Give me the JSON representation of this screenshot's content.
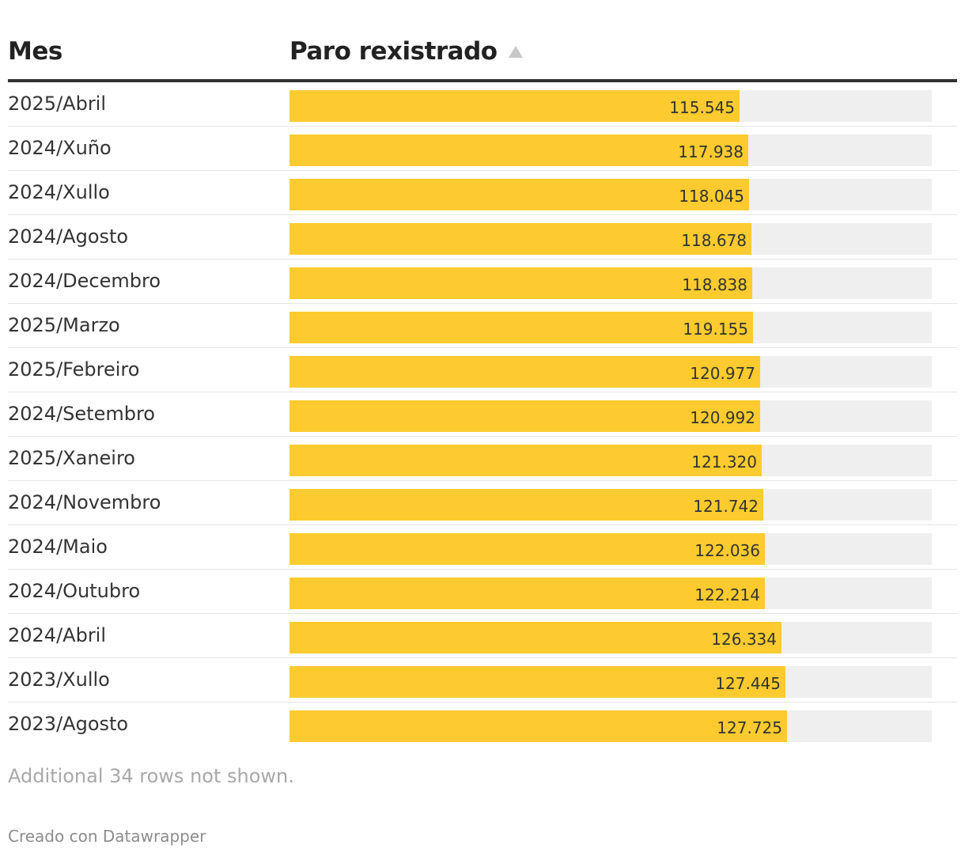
{
  "chart_data": {
    "type": "table",
    "columns": [
      "Mes",
      "Paro rexistrado"
    ],
    "sort_indicator": "▲",
    "categories": [
      "2025/Abril",
      "2024/Xuño",
      "2024/Xullo",
      "2024/Agosto",
      "2024/Decembro",
      "2025/Marzo",
      "2025/Febreiro",
      "2024/Setembro",
      "2025/Xaneiro",
      "2024/Novembro",
      "2024/Maio",
      "2024/Outubro",
      "2024/Abril",
      "2023/Xullo",
      "2023/Agosto"
    ],
    "values": [
      115545,
      117938,
      118045,
      118678,
      118838,
      119155,
      120977,
      120992,
      121320,
      121742,
      122036,
      122214,
      126334,
      127445,
      127725
    ],
    "labels": [
      "115.545",
      "117.938",
      "118.045",
      "118.678",
      "118.838",
      "119.155",
      "120.977",
      "120.992",
      "121.320",
      "121.742",
      "122.036",
      "122.214",
      "126.334",
      "127.445",
      "127.725"
    ],
    "bar_max": 165000,
    "bar_color": "#fdcb2f",
    "track_color": "#efefef"
  },
  "footer": {
    "note": "Additional 34 rows not shown.",
    "credit": "Creado con Datawrapper"
  }
}
